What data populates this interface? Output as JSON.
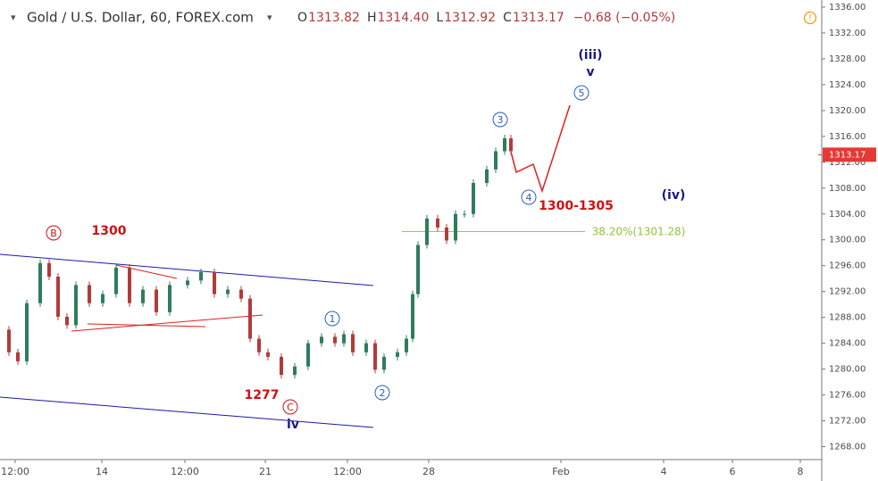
{
  "chart_data": {
    "type": "candlestick",
    "title": "Gold / U.S. Dollar, 60, FOREX.com",
    "ohlc": [
      {
        "label": "O",
        "value": "1313.82"
      },
      {
        "label": "H",
        "value": "1314.40"
      },
      {
        "label": "L",
        "value": "1312.92"
      },
      {
        "label": "C",
        "value": "1313.17"
      }
    ],
    "change": "−0.68 (−0.05%)",
    "x": [
      0,
      10,
      20,
      30,
      45,
      55,
      65,
      75,
      85,
      100,
      115,
      130,
      145,
      160,
      175,
      190,
      210,
      225,
      240,
      255,
      270,
      280,
      290,
      300,
      315,
      330,
      345,
      360,
      375,
      385,
      395,
      410,
      420,
      430,
      445,
      455,
      462,
      468,
      478,
      490,
      500,
      510,
      520,
      530,
      545,
      555,
      565,
      572
    ],
    "values": [
      1286.1,
      1282.6,
      1281.2,
      1290.2,
      1296.4,
      1294.3,
      1288.1,
      1286.8,
      1293.0,
      1290.2,
      1291.6,
      1295.7,
      1290.2,
      1292.3,
      1288.8,
      1293.0,
      1293.7,
      1295.0,
      1291.6,
      1292.3,
      1290.9,
      1284.7,
      1282.6,
      1281.9,
      1279.1,
      1280.4,
      1284.0,
      1285.0,
      1284.0,
      1285.4,
      1282.6,
      1284.0,
      1279.9,
      1281.9,
      1282.6,
      1284.7,
      1291.6,
      1299.2,
      1303.3,
      1301.9,
      1299.9,
      1304.0,
      1304.0,
      1308.8,
      1310.9,
      1313.7,
      1315.7,
      1313.7
    ],
    "last_price": {
      "value": 1313.17,
      "label": "1313.17"
    },
    "fib_level": 1301.28,
    "xlim": [
      0,
      920
    ],
    "xticks": [
      {
        "value": 17,
        "label": "12:00"
      },
      {
        "value": 114,
        "label": "14"
      },
      {
        "value": 207,
        "label": "12:00"
      },
      {
        "value": 297,
        "label": "21"
      },
      {
        "value": 389,
        "label": "12:00"
      },
      {
        "value": 480,
        "label": "28"
      },
      {
        "value": 628,
        "label": "Feb"
      },
      {
        "value": 743,
        "label": "4"
      },
      {
        "value": 820,
        "label": "6"
      },
      {
        "value": 896,
        "label": "8"
      }
    ],
    "ylim": [
      1266,
      1337.1
    ],
    "yticks": [
      {
        "value": 1268,
        "label": "1268.00"
      },
      {
        "value": 1272,
        "label": "1272.00"
      },
      {
        "value": 1276,
        "label": "1276.00"
      },
      {
        "value": 1280,
        "label": "1280.00"
      },
      {
        "value": 1284,
        "label": "1284.00"
      },
      {
        "value": 1288,
        "label": "1288.00"
      },
      {
        "value": 1292,
        "label": "1292.00"
      },
      {
        "value": 1296,
        "label": "1296.00"
      },
      {
        "value": 1300,
        "label": "1300.00"
      },
      {
        "value": 1304,
        "label": "1304.00"
      },
      {
        "value": 1308,
        "label": "1308.00"
      },
      {
        "value": 1312,
        "label": "1312.00"
      },
      {
        "value": 1316,
        "label": "1316.00"
      },
      {
        "value": 1320,
        "label": "1320.00"
      },
      {
        "value": 1324,
        "label": "1324.00"
      },
      {
        "value": 1328,
        "label": "1328.00"
      },
      {
        "value": 1332,
        "label": "1332.00"
      },
      {
        "value": 1336,
        "label": "1336.00"
      }
    ],
    "annotations": [
      "B",
      "1300",
      "1277",
      "C",
      "iv",
      "1",
      "2",
      "3",
      "4",
      "1300-1305",
      "5",
      "(iii)",
      "v",
      "(iv)",
      "38.20%(1301.28)"
    ],
    "up_color": "#2e7d5b",
    "down_color": "#b23b3b"
  }
}
